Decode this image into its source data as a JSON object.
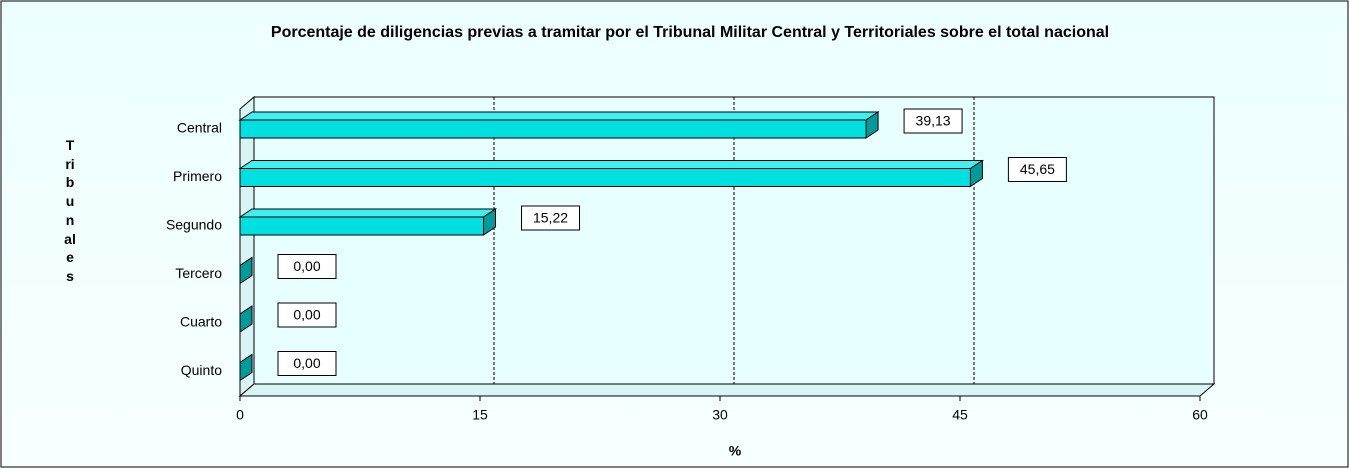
{
  "chart_data": {
    "type": "bar3d_horizontal",
    "title": "Porcentaje de diligencias previas a tramitar por el Tribunal Militar Central y Territoriales sobre el total nacional",
    "xlabel": "%",
    "ylabel": "Tribunales",
    "categories": [
      "Central",
      "Primero",
      "Segundo",
      "Tercero",
      "Cuarto",
      "Quinto"
    ],
    "values": [
      39.13,
      45.65,
      15.22,
      0,
      0,
      0
    ],
    "value_labels": [
      "39,13",
      "45,65",
      "15,22",
      "0,00",
      "0,00",
      "0,00"
    ],
    "color": "#00e0e0",
    "xlim": [
      0,
      60
    ],
    "xticks": [
      0,
      15,
      30,
      45,
      60
    ],
    "grid": true
  }
}
